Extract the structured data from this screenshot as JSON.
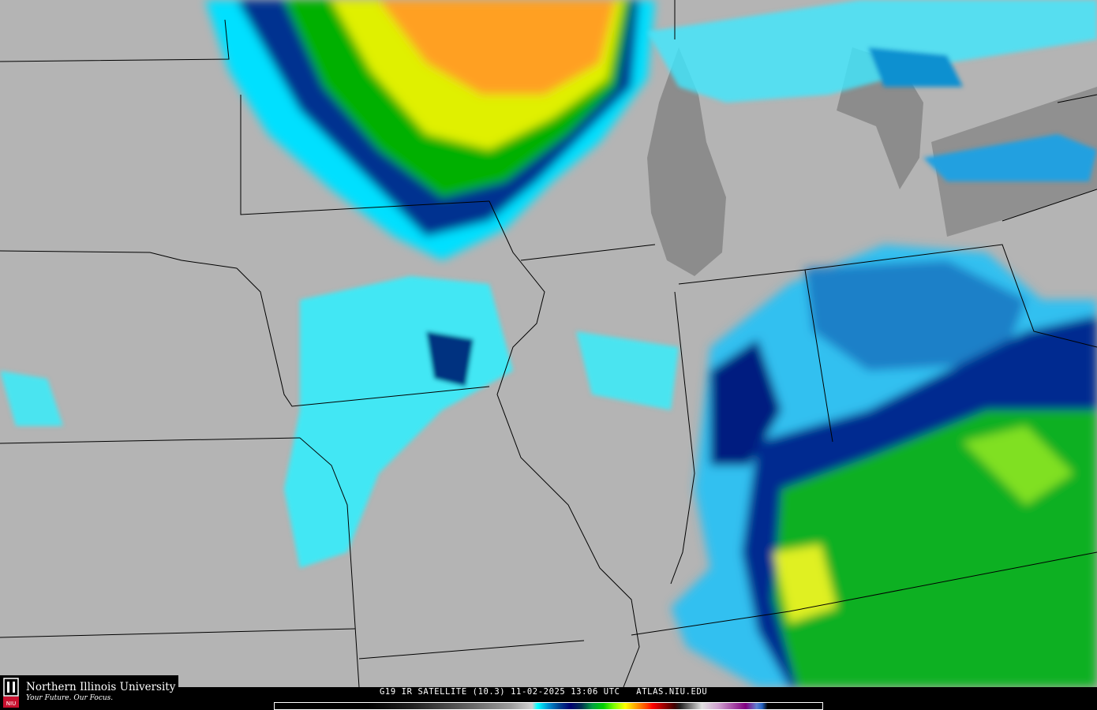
{
  "caption": "G19 IR SATELLITE (10.3) 11-02-2025 13:06 UTC   ATLAS.NIU.EDU",
  "logo": {
    "name": "Northern Illinois University",
    "tagline": "Your Future. Our Focus.",
    "mark": "NIU"
  },
  "colors": {
    "land_background": "#b4b4b4",
    "lake": "#8c8c8c",
    "cold_top_cyan": "#00ffff",
    "cold_top_blue": "#0090d0",
    "deep_blue": "#000080",
    "green": "#00c000",
    "yellow": "#ffff00",
    "orange": "#ffa000"
  },
  "colorbar": {
    "type": "IR brightness temperature scale"
  }
}
